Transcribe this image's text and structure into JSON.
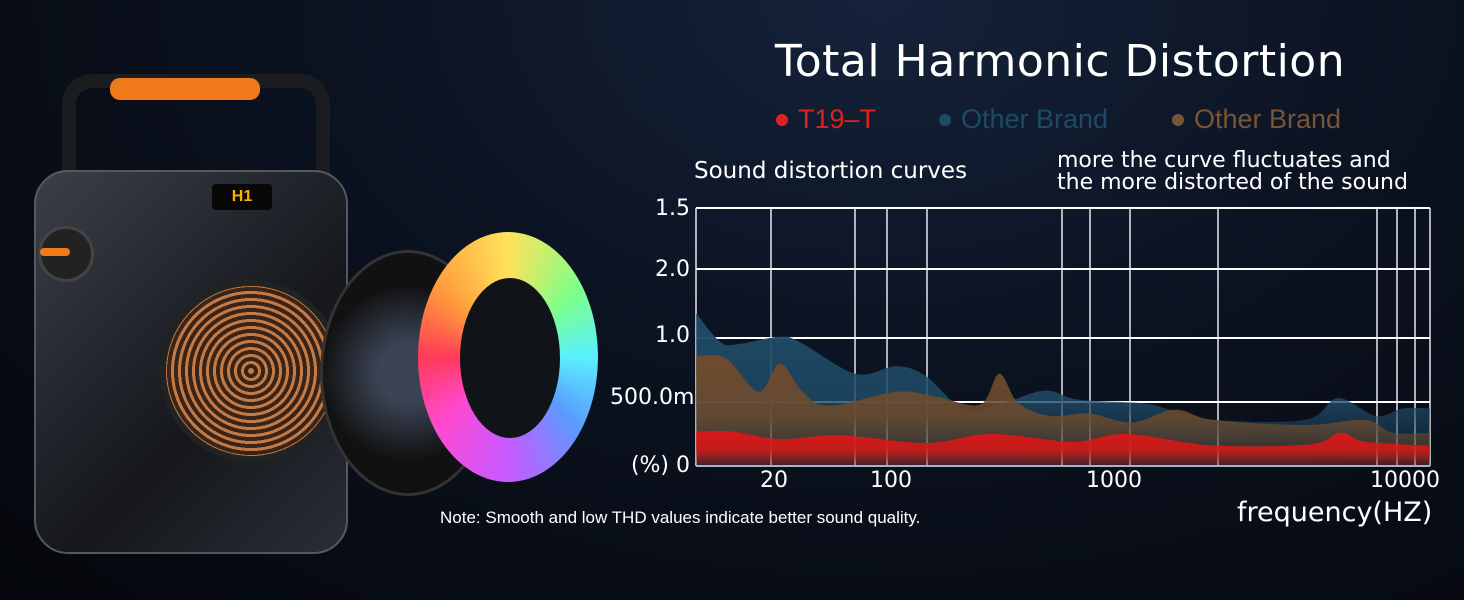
{
  "device_display": "H1",
  "colors": {
    "t19": "#d81818",
    "other_blue": "#1f4a66",
    "other_brown": "#6e4b2d",
    "grid": "#ffffff"
  },
  "chart_data": {
    "type": "area",
    "title": "Total Harmonic Distortion",
    "subtitle_left": "Sound distortion curves",
    "subtitle_right_line1": "more the curve fluctuates and",
    "subtitle_right_line2": "the more distorted of the sound",
    "xlabel": "frequency(HZ)",
    "ylabel": "(%)",
    "x_scale": "log",
    "grid": true,
    "legend_placement": "top",
    "xtick_labels": [
      "20",
      "100",
      "1000",
      "10000"
    ],
    "xtick_values": [
      20,
      100,
      1000,
      10000
    ],
    "ytick_labels": [
      "(%) 0",
      "500.0m",
      "1.0",
      "2.0",
      "1.5"
    ],
    "note": "Note: Smooth and low THD values indicate better sound quality.",
    "series": [
      {
        "name": "Other Brand",
        "color": "#1f4a66",
        "x": [
          7,
          9.7,
          12.1,
          21.8,
          29.3,
          61,
          105,
          143,
          212,
          315,
          494,
          693,
          1273,
          1585,
          2250,
          4740,
          6180,
          8390,
          10450,
          13000
        ],
        "y": [
          1.19,
          0.97,
          0.95,
          1.01,
          0.96,
          0.72,
          0.78,
          0.7,
          0.44,
          0.49,
          0.59,
          0.52,
          0.49,
          0.44,
          0.36,
          0.36,
          0.53,
          0.39,
          0.45,
          0.45
        ]
      },
      {
        "name": "Other Brand",
        "color": "#6e4b2d",
        "x": [
          7,
          10.5,
          16.3,
          21.8,
          29.3,
          42.3,
          105,
          160,
          251,
          306,
          373,
          523,
          776,
          1166,
          1655,
          2250,
          4740,
          7690,
          9580,
          13000
        ],
        "y": [
          0.86,
          0.84,
          0.58,
          0.8,
          0.59,
          0.47,
          0.58,
          0.54,
          0.48,
          0.72,
          0.49,
          0.39,
          0.41,
          0.34,
          0.44,
          0.36,
          0.32,
          0.36,
          0.26,
          0.26
        ]
      },
      {
        "name": "T19–T",
        "color": "#d81818",
        "x": [
          7,
          11.3,
          21.8,
          49,
          143,
          281,
          655,
          1117,
          2250,
          4950,
          6310,
          7690,
          13000
        ],
        "y": [
          0.27,
          0.27,
          0.21,
          0.24,
          0.18,
          0.25,
          0.19,
          0.25,
          0.16,
          0.17,
          0.26,
          0.19,
          0.16
        ]
      }
    ]
  }
}
